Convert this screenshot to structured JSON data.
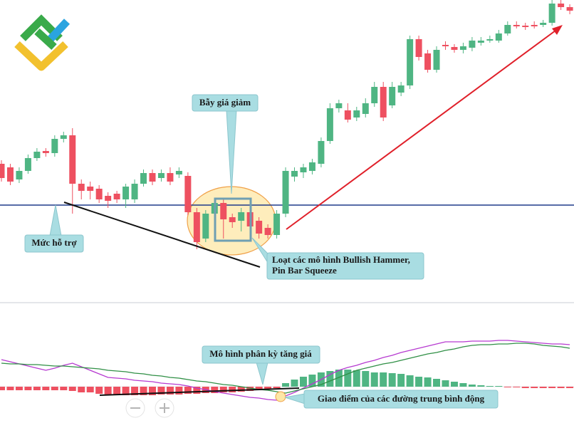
{
  "chart_data": [
    {
      "type": "candlestick",
      "ylim": [
        0,
        420
      ],
      "up_color": "#4fb583",
      "down_color": "#ee5060",
      "support_level": 132,
      "support_color": "#1f3a8a",
      "open": [
        190,
        185,
        168,
        180,
        198,
        208,
        205,
        225,
        230,
        162,
        158,
        155,
        145,
        148,
        140,
        140,
        162,
        177,
        170,
        177,
        175,
        173,
        122,
        85,
        120,
        135,
        115,
        110,
        122,
        110,
        100,
        90,
        120,
        172,
        178,
        180,
        190,
        222,
        268,
        265,
        255,
        260,
        275,
        298,
        272,
        290,
        300,
        365,
        345,
        322,
        357,
        354,
        350,
        353,
        360,
        363,
        363,
        373,
        385,
        384,
        385,
        385,
        388,
        415,
        410
      ],
      "high": [
        195,
        190,
        185,
        203,
        212,
        212,
        230,
        235,
        240,
        168,
        165,
        160,
        150,
        152,
        162,
        168,
        182,
        182,
        182,
        185,
        185,
        178,
        128,
        125,
        142,
        140,
        120,
        128,
        128,
        115,
        105,
        125,
        185,
        185,
        190,
        197,
        227,
        275,
        280,
        275,
        270,
        282,
        305,
        305,
        305,
        305,
        370,
        370,
        350,
        355,
        362,
        358,
        360,
        368,
        368,
        370,
        378,
        390,
        390,
        388,
        390,
        392,
        420,
        420,
        414
      ],
      "low": [
        165,
        160,
        163,
        176,
        194,
        200,
        200,
        220,
        120,
        140,
        140,
        135,
        128,
        135,
        128,
        135,
        158,
        160,
        165,
        160,
        170,
        118,
        70,
        80,
        115,
        85,
        100,
        95,
        95,
        85,
        85,
        85,
        115,
        165,
        170,
        175,
        185,
        218,
        262,
        248,
        250,
        255,
        270,
        250,
        268,
        285,
        295,
        335,
        318,
        318,
        350,
        346,
        345,
        348,
        356,
        360,
        360,
        370,
        380,
        378,
        380,
        382,
        384,
        406,
        400
      ],
      "close": [
        170,
        165,
        180,
        198,
        207,
        205,
        225,
        230,
        162,
        152,
        152,
        140,
        138,
        140,
        158,
        162,
        177,
        165,
        177,
        165,
        180,
        122,
        80,
        120,
        135,
        112,
        108,
        122,
        102,
        92,
        90,
        120,
        180,
        180,
        185,
        192,
        222,
        268,
        275,
        252,
        265,
        275,
        298,
        255,
        298,
        300,
        365,
        340,
        322,
        350,
        355,
        350,
        355,
        363,
        363,
        365,
        373,
        385,
        383,
        382,
        383,
        388,
        415,
        410,
        405
      ]
    },
    {
      "type": "macd",
      "ylim": [
        -51,
        118
      ],
      "histogram": {
        "up_color": "#4fb583",
        "down_color": "#ee5060",
        "values": [
          -5,
          -5,
          -5,
          -5,
          -5,
          -5,
          -5,
          -5,
          -6,
          -8,
          -8,
          -10,
          -12,
          -12,
          -12,
          -12,
          -12,
          -12,
          -11,
          -11,
          -11,
          -10,
          -10,
          -9,
          -9,
          -8,
          -8,
          -7,
          -6,
          -5,
          -4,
          -2,
          5,
          10,
          14,
          17,
          20,
          22,
          24,
          24,
          23,
          22,
          20,
          20,
          19,
          18,
          16,
          14,
          13,
          11,
          9,
          7,
          5,
          3,
          2,
          1,
          1,
          -1,
          -1,
          -2,
          -2,
          -2,
          -2,
          -2,
          -2
        ]
      },
      "series": [
        {
          "color": "#b63ad0",
          "values": [
            38,
            35,
            32,
            29,
            26,
            23,
            26,
            30,
            33,
            28,
            23,
            18,
            13,
            12,
            11,
            9,
            8,
            7,
            5,
            4,
            3,
            1,
            -2,
            -4,
            -7,
            -9,
            -11,
            -13,
            -15,
            -16,
            -18,
            -19,
            -13,
            -8,
            -2,
            4,
            10,
            17,
            23,
            27,
            30,
            34,
            37,
            41,
            44,
            48,
            51,
            54,
            57,
            60,
            63,
            63,
            63,
            64,
            64,
            64,
            65,
            65,
            64,
            63,
            62,
            61,
            60,
            60,
            59
          ]
        },
        {
          "color": "#2f8f45",
          "values": [
            33,
            32,
            32,
            31,
            31,
            30,
            29,
            29,
            28,
            27,
            26,
            25,
            23,
            22,
            21,
            19,
            18,
            16,
            15,
            13,
            12,
            10,
            8,
            7,
            5,
            3,
            2,
            0,
            -2,
            -4,
            -5,
            -7,
            -9,
            -6,
            -3,
            0,
            3,
            8,
            13,
            18,
            23,
            26,
            29,
            32,
            34,
            37,
            40,
            43,
            46,
            48,
            51,
            53,
            56,
            58,
            59,
            59,
            60,
            60,
            61,
            61,
            60,
            58,
            57,
            56,
            54
          ]
        }
      ]
    }
  ],
  "annotations": {
    "trap": "Bẫy giá giảm",
    "support": "Mức hỗ trợ",
    "patterns": [
      "Loạt các mô hình Bullish Hammer,",
      "Pin Bar Squeeze"
    ],
    "divergence": "Mô hình phân kỳ tăng giá",
    "crossover": "Giao điểm của các đường trung bình động"
  }
}
